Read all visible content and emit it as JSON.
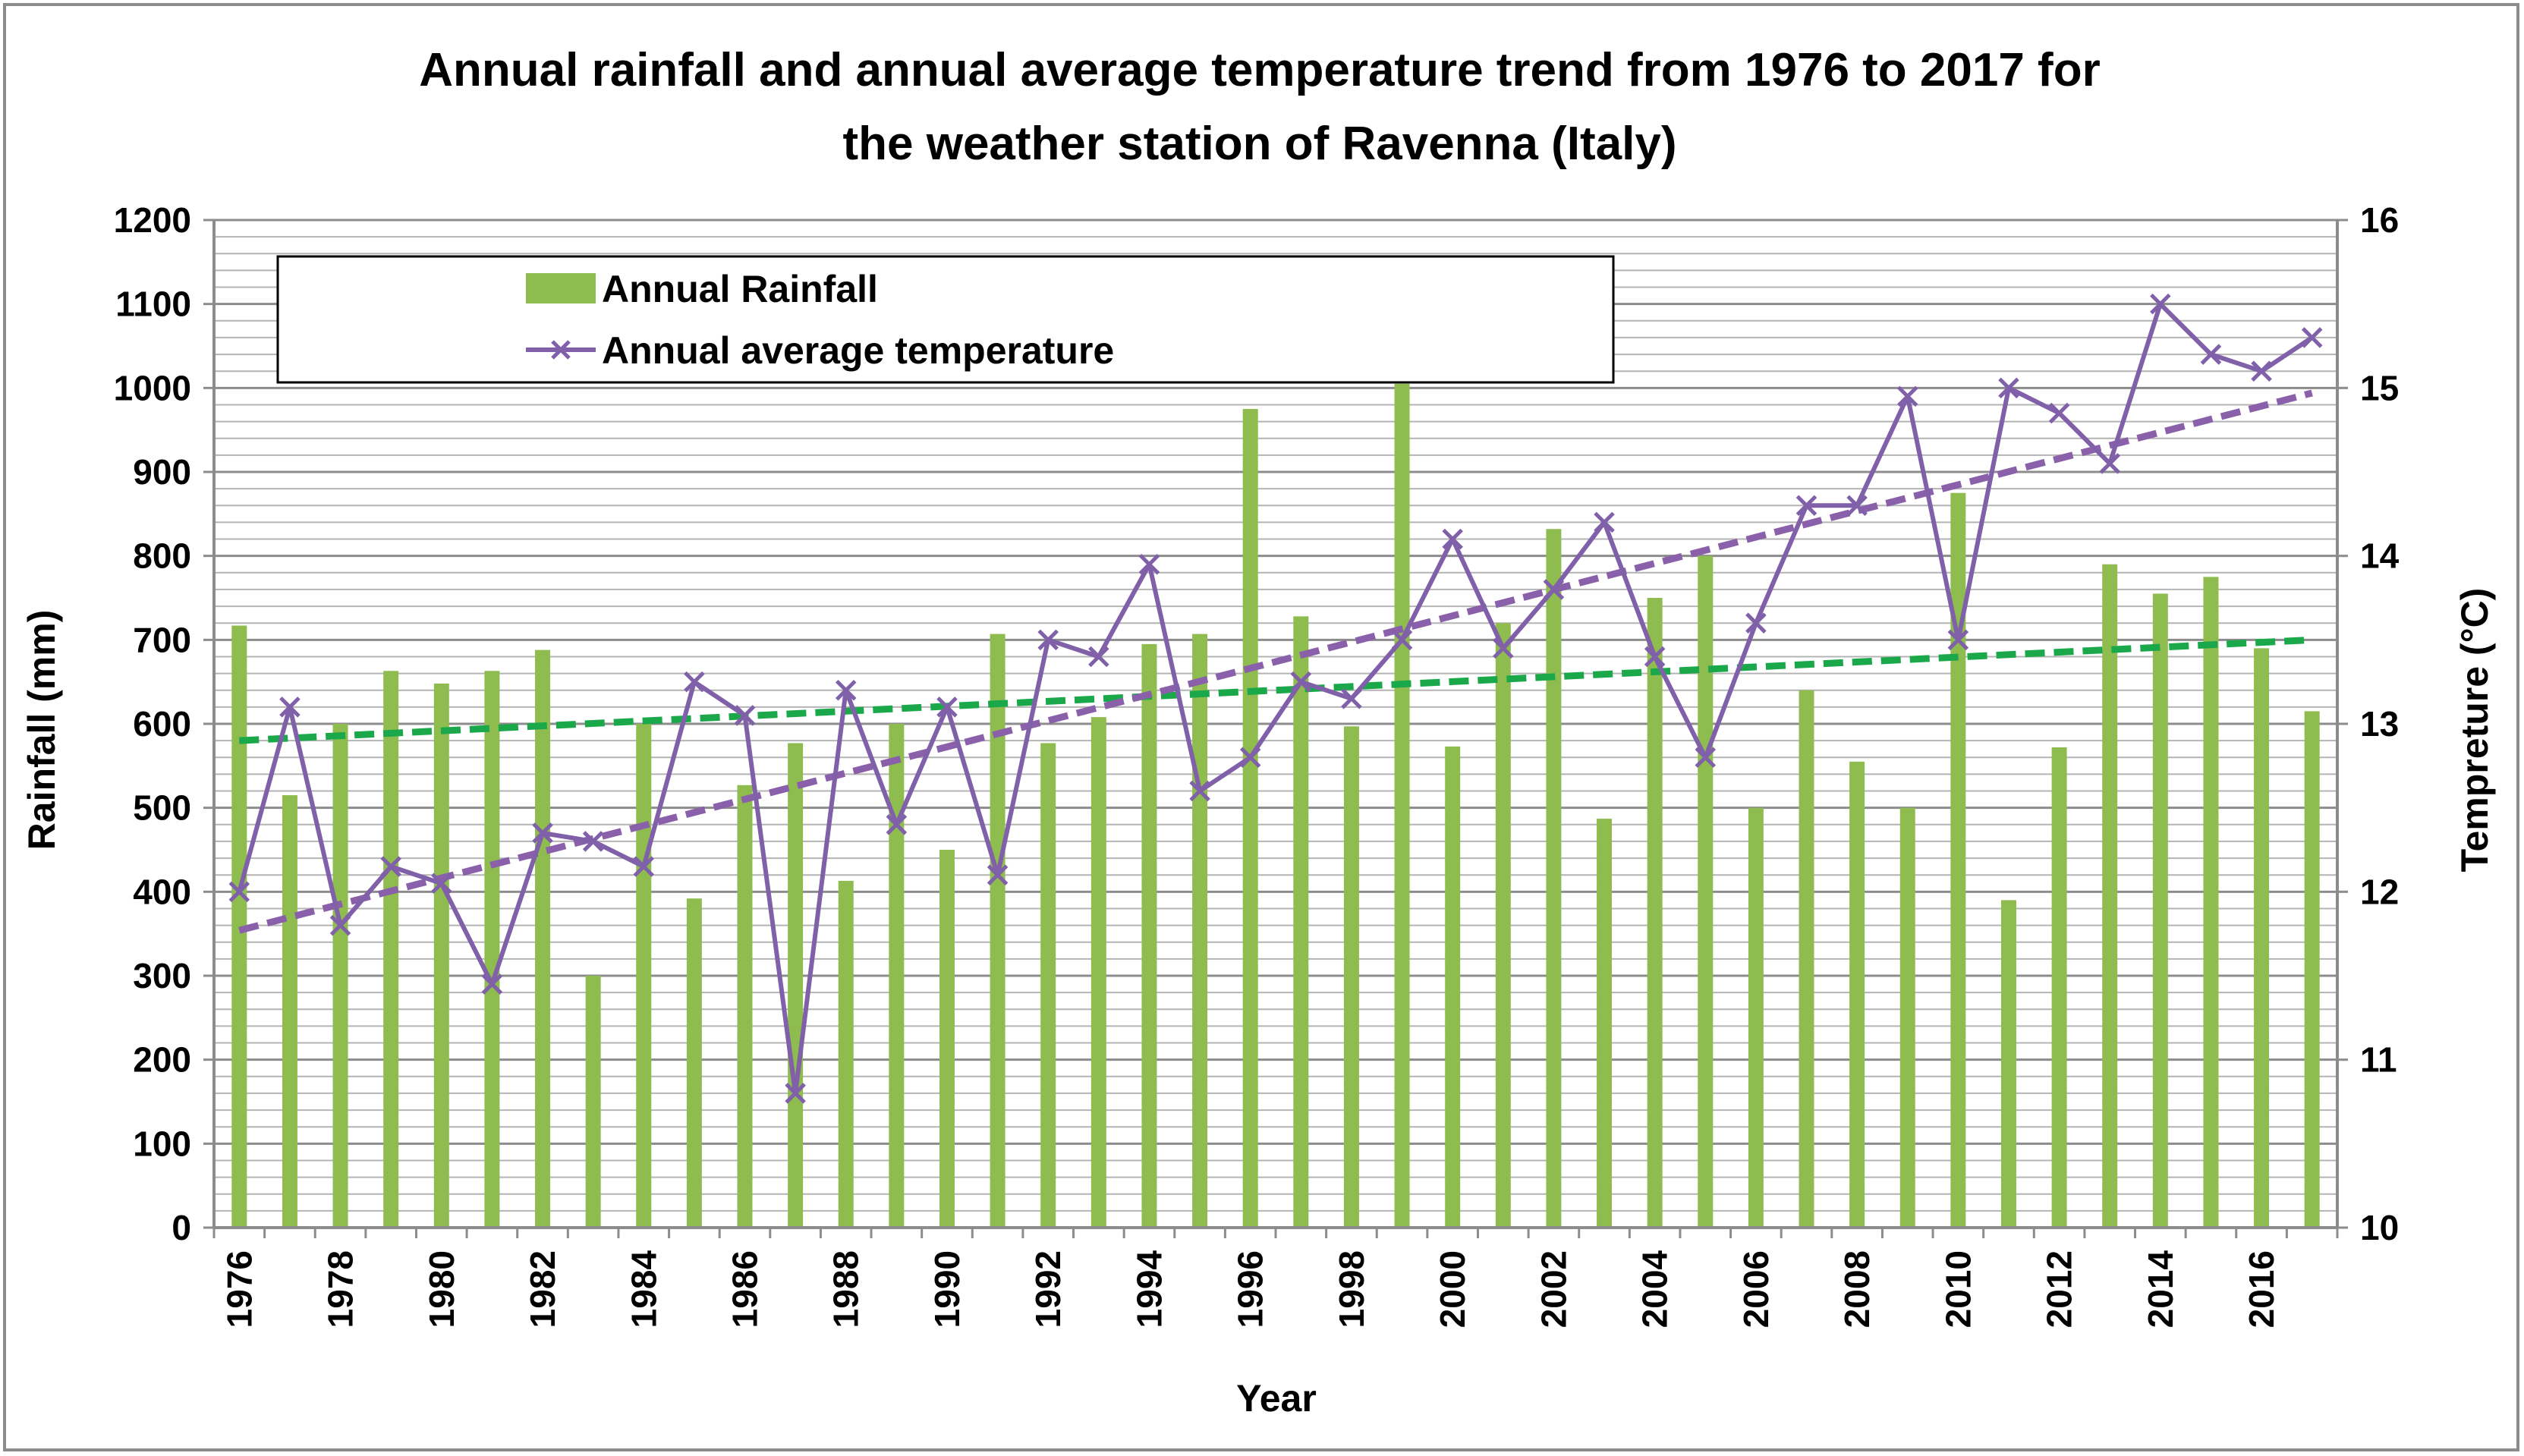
{
  "chart_data": {
    "type": "bar",
    "title_lines": [
      "Annual rainfall  and annual average temperature  trend  from 1976 to 2017  for",
      "the weather station of Ravenna  (Italy)"
    ],
    "xlabel": "Year",
    "ylabel": "Rainfall (mm)",
    "y2label": "Tempreture (°C)",
    "ylim": [
      0,
      1200
    ],
    "y2lim": [
      10,
      16
    ],
    "y_ticks": [
      "0",
      "100",
      "200",
      "300",
      "400",
      "500",
      "600",
      "700",
      "800",
      "900",
      "1000",
      "1100",
      "1200"
    ],
    "y2_ticks": [
      "10",
      "11",
      "12",
      "13",
      "14",
      "15",
      "16"
    ],
    "categories": [
      1976,
      1977,
      1978,
      1979,
      1980,
      1981,
      1982,
      1983,
      1984,
      1985,
      1986,
      1987,
      1988,
      1989,
      1990,
      1991,
      1992,
      1993,
      1994,
      1995,
      1996,
      1997,
      1998,
      1999,
      2000,
      2001,
      2002,
      2003,
      2004,
      2005,
      2006,
      2007,
      2008,
      2009,
      2010,
      2011,
      2012,
      2013,
      2014,
      2015,
      2016,
      2017
    ],
    "x_tick_labels": [
      "1976",
      "1978",
      "1980",
      "1982",
      "1984",
      "1986",
      "1988",
      "1990",
      "1992",
      "1994",
      "1996",
      "1998",
      "2000",
      "2002",
      "2004",
      "2006",
      "2008",
      "2010",
      "2012",
      "2014",
      "2016"
    ],
    "series": [
      {
        "name": "Annual Rainfall",
        "type": "bar",
        "axis": "left",
        "color": "#8fbc4f",
        "values": [
          717,
          515,
          600,
          663,
          648,
          663,
          688,
          300,
          600,
          392,
          527,
          577,
          413,
          600,
          450,
          707,
          577,
          608,
          695,
          707,
          975,
          728,
          597,
          1005,
          573,
          720,
          832,
          487,
          750,
          800,
          500,
          640,
          555,
          500,
          875,
          390,
          572,
          790,
          755,
          775,
          690,
          615
        ]
      },
      {
        "name": "Annual average temperature",
        "type": "line",
        "axis": "right",
        "color": "#8060a8",
        "marker": "x",
        "values": [
          12.0,
          13.1,
          11.8,
          12.15,
          12.05,
          11.45,
          12.35,
          12.3,
          12.15,
          13.25,
          13.05,
          10.8,
          13.2,
          12.4,
          13.1,
          12.1,
          13.5,
          13.4,
          13.95,
          12.6,
          12.8,
          13.25,
          13.15,
          13.5,
          14.1,
          13.45,
          13.8,
          14.2,
          13.4,
          12.8,
          13.6,
          14.3,
          14.3,
          14.95,
          13.5,
          15.0,
          14.85,
          14.55,
          15.5,
          15.2,
          15.1,
          15.3
        ]
      }
    ],
    "trendlines": [
      {
        "name": "Rainfall trend",
        "axis": "left",
        "color": "#1aa84a",
        "start": 580,
        "end": 700
      },
      {
        "name": "Temperature trend",
        "axis": "right",
        "color": "#8a60aa",
        "start": 11.77,
        "end": 14.97
      }
    ],
    "legend": {
      "position": "top-left",
      "entries": [
        "Annual Rainfall",
        "Annual average temperature"
      ]
    },
    "grid": true
  }
}
